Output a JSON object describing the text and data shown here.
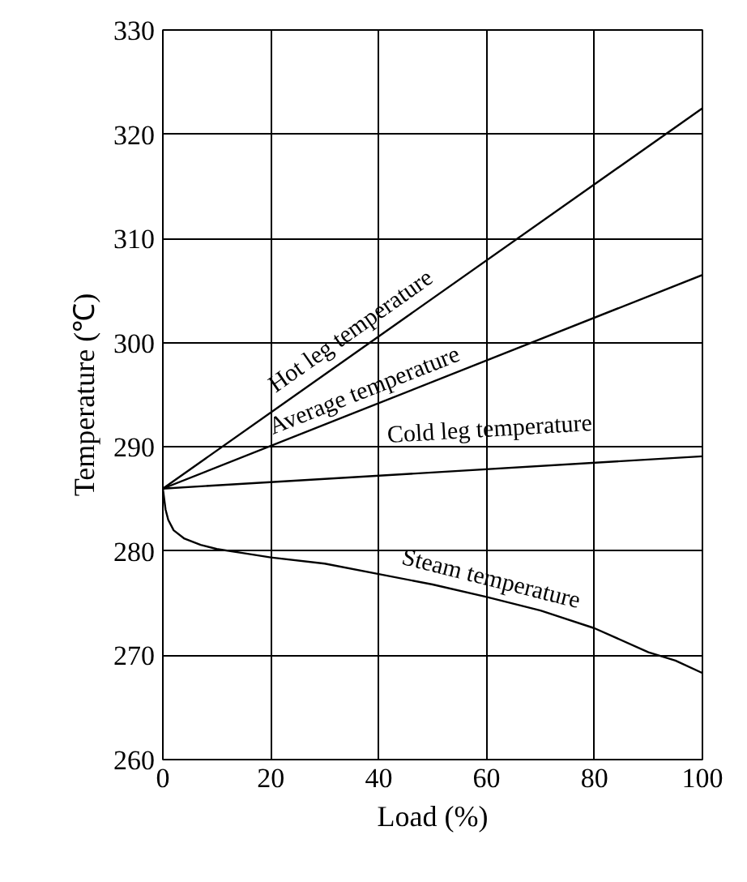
{
  "chart_data": {
    "type": "line",
    "xlabel": "Load (%)",
    "ylabel": "Temperature (℃)",
    "xlim": [
      0,
      100
    ],
    "ylim": [
      260,
      330
    ],
    "xticks": [
      0,
      20,
      40,
      60,
      80,
      100
    ],
    "yticks": [
      260,
      270,
      280,
      290,
      300,
      310,
      320,
      330
    ],
    "grid": true,
    "marker": "none",
    "line_style": "solid",
    "series": [
      {
        "name": "Hot leg temperature",
        "color": "#000000",
        "x": [
          0,
          100
        ],
        "values": [
          286,
          322.5
        ]
      },
      {
        "name": "Average temperature",
        "color": "#000000",
        "x": [
          0,
          100
        ],
        "values": [
          286,
          306.5
        ]
      },
      {
        "name": "Cold leg temperature",
        "color": "#000000",
        "x": [
          0,
          100
        ],
        "values": [
          286,
          289.1
        ]
      },
      {
        "name": "Steam temperature",
        "color": "#000000",
        "x": [
          0,
          0.5,
          1,
          2,
          4,
          7,
          10,
          15,
          20,
          30,
          40,
          50,
          60,
          70,
          80,
          90,
          95,
          100
        ],
        "values": [
          286,
          284,
          283,
          282,
          281.2,
          280.6,
          280.2,
          279.8,
          279.4,
          278.8,
          277.8,
          276.8,
          275.6,
          274.3,
          272.6,
          270.3,
          269.5,
          268.3
        ]
      }
    ]
  }
}
